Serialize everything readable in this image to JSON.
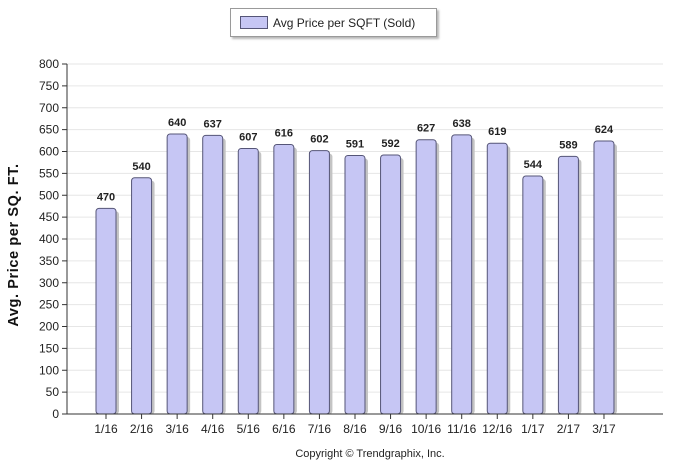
{
  "legend": {
    "label": "Avg Price per SQFT (Sold)"
  },
  "copyright": "Copyright © Trendgraphix, Inc.",
  "colors": {
    "bar_fill": "#c6c6f4",
    "bar_stroke": "#555577",
    "grid": "#e6e6e6"
  },
  "chart_data": {
    "type": "bar",
    "title": "",
    "xlabel": "",
    "ylabel": "Avg. Price per SQ. FT.",
    "categories": [
      "1/16",
      "2/16",
      "3/16",
      "4/16",
      "5/16",
      "6/16",
      "7/16",
      "8/16",
      "9/16",
      "10/16",
      "11/16",
      "12/16",
      "1/17",
      "2/17",
      "3/17"
    ],
    "series": [
      {
        "name": "Avg Price per SQFT (Sold)",
        "values": [
          470,
          540,
          640,
          637,
          607,
          616,
          602,
          591,
          592,
          627,
          638,
          619,
          544,
          589,
          624
        ]
      }
    ],
    "ylim": [
      0,
      800
    ],
    "yticks": [
      0,
      50,
      100,
      150,
      200,
      250,
      300,
      350,
      400,
      450,
      500,
      550,
      600,
      650,
      700,
      750,
      800
    ],
    "grid": true,
    "data_labels": true,
    "legend_position": "top"
  }
}
